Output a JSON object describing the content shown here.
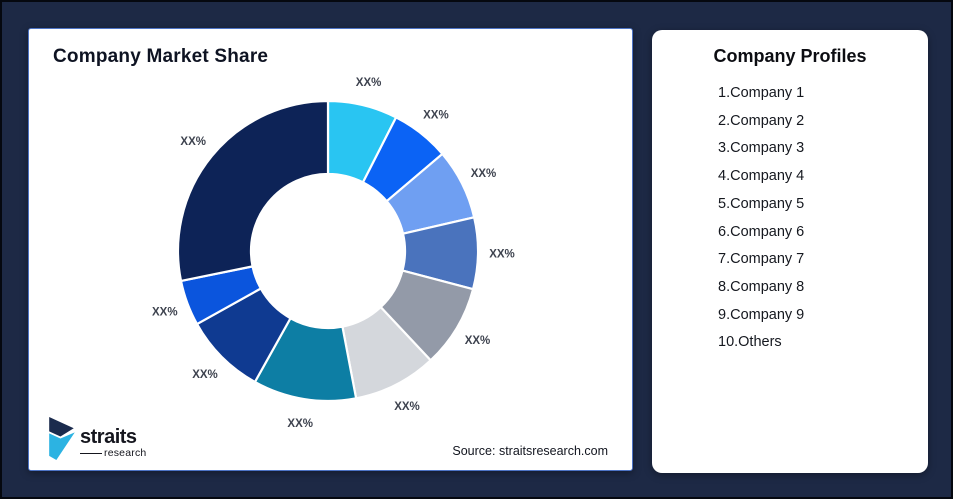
{
  "page": {
    "background_color": "#1d2945",
    "border_color": "#05080f"
  },
  "chart_card": {
    "title": "Company Market Share",
    "source": "Source: straitsresearch.com",
    "label_color": "#3d424e"
  },
  "logo": {
    "brand": "straits",
    "sub": "research",
    "mark_navy": "#1b2b4d",
    "mark_cyan": "#2cb3e2"
  },
  "profiles": {
    "title": "Company Profiles",
    "items": [
      "1.Company 1",
      "2.Company 2",
      "3.Company 3",
      "4.Company 4",
      "5.Company 5",
      "6.Company 6",
      "7.Company 7",
      "8.Company 8",
      "9.Company 9",
      "10.Others"
    ]
  },
  "chart_data": {
    "type": "pie",
    "subtype": "donut",
    "title": "Company Market Share",
    "start_angle_deg": 0,
    "direction": "clockwise",
    "donut_hole_color": "#ffffff",
    "segment_gap_color": "#ffffff",
    "segments": [
      {
        "label": "XX%",
        "value": 7.5,
        "color": "#29c5f2"
      },
      {
        "label": "XX%",
        "value": 6.3,
        "color": "#0b63f5"
      },
      {
        "label": "XX%",
        "value": 7.6,
        "color": "#6f9ff2"
      },
      {
        "label": "XX%",
        "value": 7.7,
        "color": "#4a73bd"
      },
      {
        "label": "XX%",
        "value": 8.9,
        "color": "#939aa8"
      },
      {
        "label": "XX%",
        "value": 9.0,
        "color": "#d4d7dc"
      },
      {
        "label": "XX%",
        "value": 11.1,
        "color": "#0d7ea4"
      },
      {
        "label": "XX%",
        "value": 8.8,
        "color": "#0f3a91"
      },
      {
        "label": "XX%",
        "value": 4.9,
        "color": "#0b55dd"
      },
      {
        "label": "XX%",
        "value": 28.2,
        "color": "#0d2357"
      }
    ]
  }
}
